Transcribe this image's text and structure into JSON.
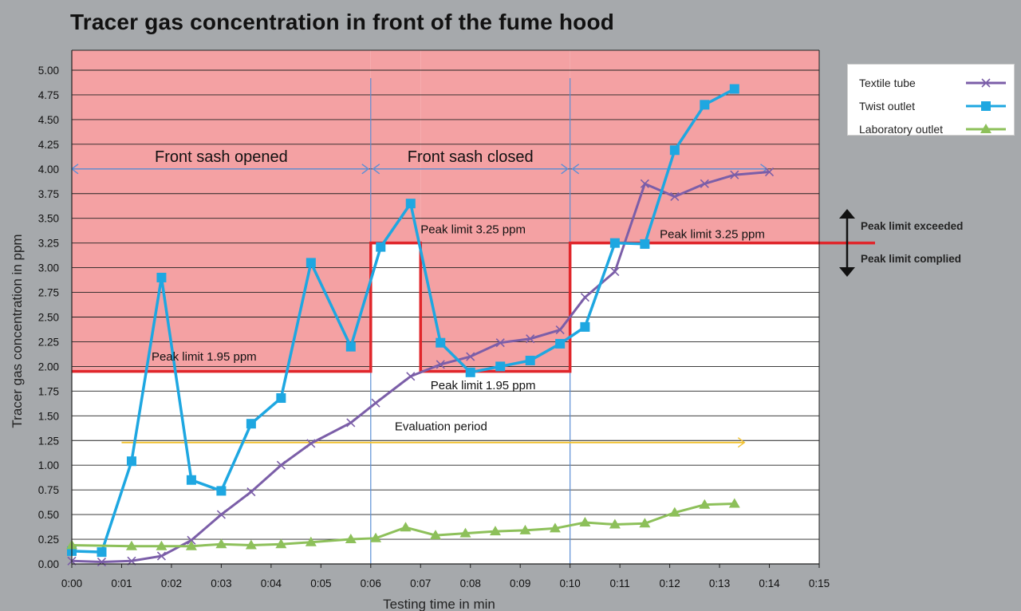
{
  "title": "Tracer gas concentration in front of the fume hood",
  "chart_data": {
    "type": "line",
    "title": "Tracer gas concentration in front of the fume hood",
    "xlabel": "Testing time in min",
    "ylabel": "Tracer gas concentration in ppm",
    "xlim_min": [
      0,
      15
    ],
    "ylim": [
      0,
      5.0
    ],
    "grid": true,
    "legend_position": "top-right",
    "x_tick_labels": [
      "0:00",
      "0:01",
      "0:02",
      "0:03",
      "0:04",
      "0:05",
      "0:06",
      "0:07",
      "0:08",
      "0:09",
      "0:10",
      "0:11",
      "0:12",
      "0:13",
      "0:14",
      "0:15"
    ],
    "y_tick_labels": [
      "0.00",
      "0.25",
      "0.50",
      "0.75",
      "1.00",
      "1.25",
      "1.50",
      "1.75",
      "2.00",
      "2.25",
      "2.50",
      "2.75",
      "3.00",
      "3.25",
      "3.50",
      "3.75",
      "4.00",
      "4.25",
      "4.50",
      "4.75",
      "5.00"
    ],
    "series": [
      {
        "name": "Textile tube",
        "color": "#7b5ea8",
        "marker": "x",
        "x": [
          0,
          0.6,
          1.2,
          1.8,
          2.4,
          3.0,
          3.6,
          4.2,
          4.8,
          5.6,
          6.1,
          6.8,
          7.4,
          8.0,
          8.6,
          9.2,
          9.8,
          10.3,
          10.9,
          11.5,
          12.1,
          12.7,
          13.3,
          14.0
        ],
        "values": [
          0.03,
          0.02,
          0.03,
          0.08,
          0.24,
          0.5,
          0.73,
          1.0,
          1.22,
          1.43,
          1.63,
          1.9,
          2.02,
          2.1,
          2.24,
          2.28,
          2.37,
          2.7,
          2.96,
          3.85,
          3.72,
          3.85,
          3.94,
          3.97
        ]
      },
      {
        "name": "Twist outlet",
        "color": "#1ea7e1",
        "marker": "square",
        "x": [
          0,
          0.6,
          1.2,
          1.8,
          2.4,
          3.0,
          3.6,
          4.2,
          4.8,
          5.6,
          6.2,
          6.8,
          7.4,
          8.0,
          8.6,
          9.2,
          9.8,
          10.3,
          10.9,
          11.5,
          12.1,
          12.7,
          13.3
        ],
        "values": [
          0.13,
          0.12,
          1.04,
          2.9,
          0.85,
          0.74,
          1.42,
          1.68,
          3.05,
          2.2,
          3.21,
          3.65,
          2.24,
          1.94,
          2.0,
          2.06,
          2.23,
          2.4,
          3.25,
          3.24,
          4.19,
          4.65,
          4.81
        ]
      },
      {
        "name": "Laboratory outlet",
        "color": "#8dc05a",
        "marker": "triangle",
        "x": [
          0,
          1.2,
          1.8,
          2.4,
          3.0,
          3.6,
          4.2,
          4.8,
          5.6,
          6.1,
          6.7,
          7.3,
          7.9,
          8.5,
          9.1,
          9.7,
          10.3,
          10.9,
          11.5,
          12.1,
          12.7,
          13.3
        ],
        "values": [
          0.19,
          0.18,
          0.18,
          0.18,
          0.2,
          0.19,
          0.2,
          0.22,
          0.25,
          0.26,
          0.37,
          0.29,
          0.31,
          0.33,
          0.34,
          0.36,
          0.42,
          0.4,
          0.41,
          0.52,
          0.6,
          0.61
        ]
      }
    ],
    "peak_limit_steps": [
      {
        "from": 0,
        "to": 6,
        "value": 1.95
      },
      {
        "from": 6,
        "to": 7,
        "value": 3.25
      },
      {
        "from": 7,
        "to": 10,
        "value": 1.95
      },
      {
        "from": 10,
        "to": 16.5,
        "value": 3.25
      }
    ],
    "phase_dividers": [
      6,
      10
    ],
    "phases": [
      {
        "label": "Front sash opened",
        "from": 0,
        "to": 6
      },
      {
        "label": "Front sash closed",
        "from": 6,
        "to": 10
      },
      {
        "label": "",
        "from": 10,
        "to": 14
      }
    ],
    "phase_arrow_y": 4.0,
    "evaluation_period": {
      "label": "Evaluation period",
      "from": 1.0,
      "to": 13.5,
      "y": 1.23
    },
    "annotations": [
      {
        "text": "Peak limit 1.95 ppm",
        "x": 1.6,
        "y": 2.06
      },
      {
        "text": "Peak limit 3.25 ppm",
        "x": 7.0,
        "y": 3.35
      },
      {
        "text": "Peak limit 1.95 ppm",
        "x": 7.2,
        "y": 1.77
      },
      {
        "text": "Peak limit 3.25 ppm",
        "x": 11.8,
        "y": 3.3
      }
    ],
    "colors": {
      "exceeded_zone": "#f4a1a3",
      "complied_zone": "#ffffff",
      "limit_line": "#e0262b",
      "arrow_blue": "#5b8fd6",
      "arrow_yellow": "#f1c232",
      "grid": "#222222"
    }
  },
  "side_notes": {
    "exceeded": "Peak limit exceeded",
    "complied": "Peak limit complied"
  }
}
